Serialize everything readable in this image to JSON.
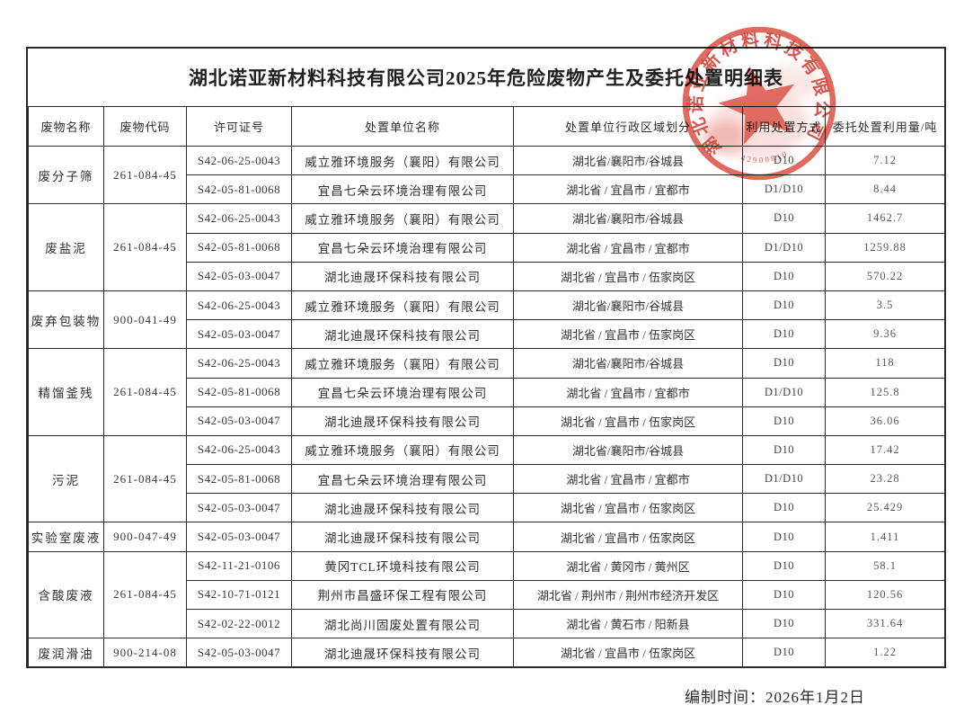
{
  "page": {
    "title": "湖北诺亚新材料科技有限公司2025年危险废物产生及委托处置明细表",
    "footer_date": "编制时间：2026年1月2日"
  },
  "table": {
    "headers": [
      "废物名称",
      "废物代码",
      "许可证号",
      "处置单位名称",
      "处置单位行政区域划分",
      "利用处置方式",
      "委托处置利用量/吨"
    ],
    "groups": [
      {
        "name": "废分子筛",
        "code": "261-084-45",
        "rows": [
          {
            "license": "S42-06-25-0043",
            "company": "威立雅环境服务（襄阳）有限公司",
            "region": "湖北省/襄阳市/谷城县",
            "method": "D10",
            "amount": "7.12"
          },
          {
            "license": "S42-05-81-0068",
            "company": "宜昌七朵云环境治理有限公司",
            "region": "湖北省 / 宜昌市 / 宜都市",
            "method": "D1/D10",
            "amount": "8.44"
          }
        ]
      },
      {
        "name": "废盐泥",
        "code": "261-084-45",
        "rows": [
          {
            "license": "S42-06-25-0043",
            "company": "威立雅环境服务（襄阳）有限公司",
            "region": "湖北省/襄阳市/谷城县",
            "method": "D10",
            "amount": "1462.7"
          },
          {
            "license": "S42-05-81-0068",
            "company": "宜昌七朵云环境治理有限公司",
            "region": "湖北省 / 宜昌市 / 宜都市",
            "method": "D1/D10",
            "amount": "1259.88"
          },
          {
            "license": "S42-05-03-0047",
            "company": "湖北迪晟环保科技有限公司",
            "region": "湖北省 / 宜昌市 / 伍家岗区",
            "method": "D10",
            "amount": "570.22"
          }
        ]
      },
      {
        "name": "废弃包装物",
        "code": "900-041-49",
        "rows": [
          {
            "license": "S42-06-25-0043",
            "company": "威立雅环境服务（襄阳）有限公司",
            "region": "湖北省/襄阳市/谷城县",
            "method": "D10",
            "amount": "3.5"
          },
          {
            "license": "S42-05-03-0047",
            "company": "湖北迪晟环保科技有限公司",
            "region": "湖北省 / 宜昌市 / 伍家岗区",
            "method": "D10",
            "amount": "9.36"
          }
        ]
      },
      {
        "name": "精馏釜残",
        "code": "261-084-45",
        "rows": [
          {
            "license": "S42-06-25-0043",
            "company": "威立雅环境服务（襄阳）有限公司",
            "region": "湖北省/襄阳市/谷城县",
            "method": "D10",
            "amount": "118"
          },
          {
            "license": "S42-05-81-0068",
            "company": "宜昌七朵云环境治理有限公司",
            "region": "湖北省 / 宜昌市 / 宜都市",
            "method": "D1/D10",
            "amount": "125.8"
          },
          {
            "license": "S42-05-03-0047",
            "company": "湖北迪晟环保科技有限公司",
            "region": "湖北省 / 宜昌市 / 伍家岗区",
            "method": "D10",
            "amount": "36.06"
          }
        ]
      },
      {
        "name": "污泥",
        "code": "261-084-45",
        "rows": [
          {
            "license": "S42-06-25-0043",
            "company": "威立雅环境服务（襄阳）有限公司",
            "region": "湖北省/襄阳市/谷城县",
            "method": "D10",
            "amount": "17.42"
          },
          {
            "license": "S42-05-81-0068",
            "company": "宜昌七朵云环境治理有限公司",
            "region": "湖北省 / 宜昌市 / 宜都市",
            "method": "D1/D10",
            "amount": "23.28"
          },
          {
            "license": "S42-05-03-0047",
            "company": "湖北迪晟环保科技有限公司",
            "region": "湖北省 / 宜昌市 / 伍家岗区",
            "method": "D10",
            "amount": "25.429"
          }
        ]
      },
      {
        "name": "实验室废液",
        "code": "900-047-49",
        "rows": [
          {
            "license": "S42-05-03-0047",
            "company": "湖北迪晟环保科技有限公司",
            "region": "湖北省 / 宜昌市 / 伍家岗区",
            "method": "D10",
            "amount": "1.411"
          }
        ]
      },
      {
        "name": "含酸废液",
        "code": "261-084-45",
        "rows": [
          {
            "license": "S42-11-21-0106",
            "company": "黄冈TCL环境科技有限公司",
            "region": "湖北省 / 黄冈市 / 黄州区",
            "method": "D10",
            "amount": "58.1"
          },
          {
            "license": "S42-10-71-0121",
            "company": "荆州市昌盛环保工程有限公司",
            "region": "湖北省 / 荆州市 / 荆州市经济开发区",
            "method": "D10",
            "amount": "120.56"
          },
          {
            "license": "S42-02-22-0012",
            "company": "湖北尚川固废处置有限公司",
            "region": "湖北省 / 黄石市 / 阳新县",
            "method": "D10",
            "amount": "331.64"
          }
        ]
      },
      {
        "name": "废润滑油",
        "code": "900-214-08",
        "rows": [
          {
            "license": "S42-05-03-0047",
            "company": "湖北迪晟环保科技有限公司",
            "region": "湖北省 / 宜昌市 / 伍家岗区",
            "method": "D10",
            "amount": "1.22"
          }
        ]
      }
    ]
  },
  "stamp": {
    "company": "湖北诺亚新材料科技有限公司",
    "serial": "42900810",
    "color": "#cf3227"
  },
  "colors": {
    "ink": "#2a2a2a",
    "stamp_red": "#cf3227"
  }
}
